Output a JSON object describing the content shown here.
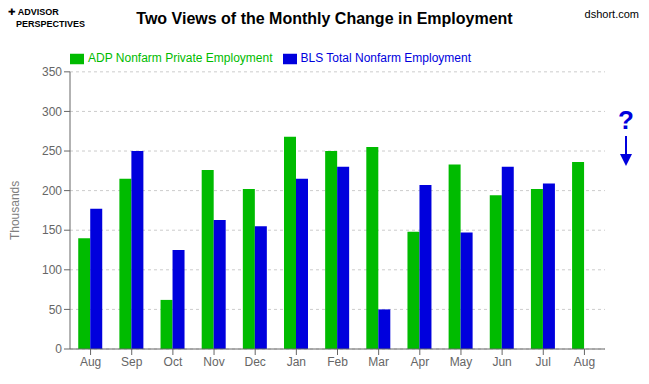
{
  "chart_data": {
    "type": "bar",
    "title": "Two Views of the Monthly Change in Employment",
    "y_label": "Thousands",
    "annotations": [
      "✚ ADVISOR",
      "PERSPECTIVES",
      "dshort.com",
      "?"
    ],
    "categories": [
      "Aug",
      "Sep",
      "Oct",
      "Nov",
      "Dec",
      "Jan",
      "Feb",
      "Mar",
      "Apr",
      "May",
      "Jun",
      "Jul",
      "Aug"
    ],
    "series": [
      {
        "name": "ADP Nonfarm Private Employment",
        "color": "#00BB00",
        "values": [
          140,
          215,
          62,
          226,
          202,
          268,
          250,
          255,
          148,
          233,
          194,
          202,
          236
        ]
      },
      {
        "name": "BLS Total Nonfarm Employment",
        "color": "#0000DD",
        "values": [
          177,
          250,
          125,
          163,
          155,
          215,
          230,
          50,
          207,
          147,
          230,
          209,
          null
        ]
      }
    ],
    "ylim": [
      0,
      350
    ],
    "yticks": [
      0,
      50,
      100,
      150,
      200,
      250,
      300,
      350
    ],
    "grid": true,
    "legend": "upper left"
  }
}
